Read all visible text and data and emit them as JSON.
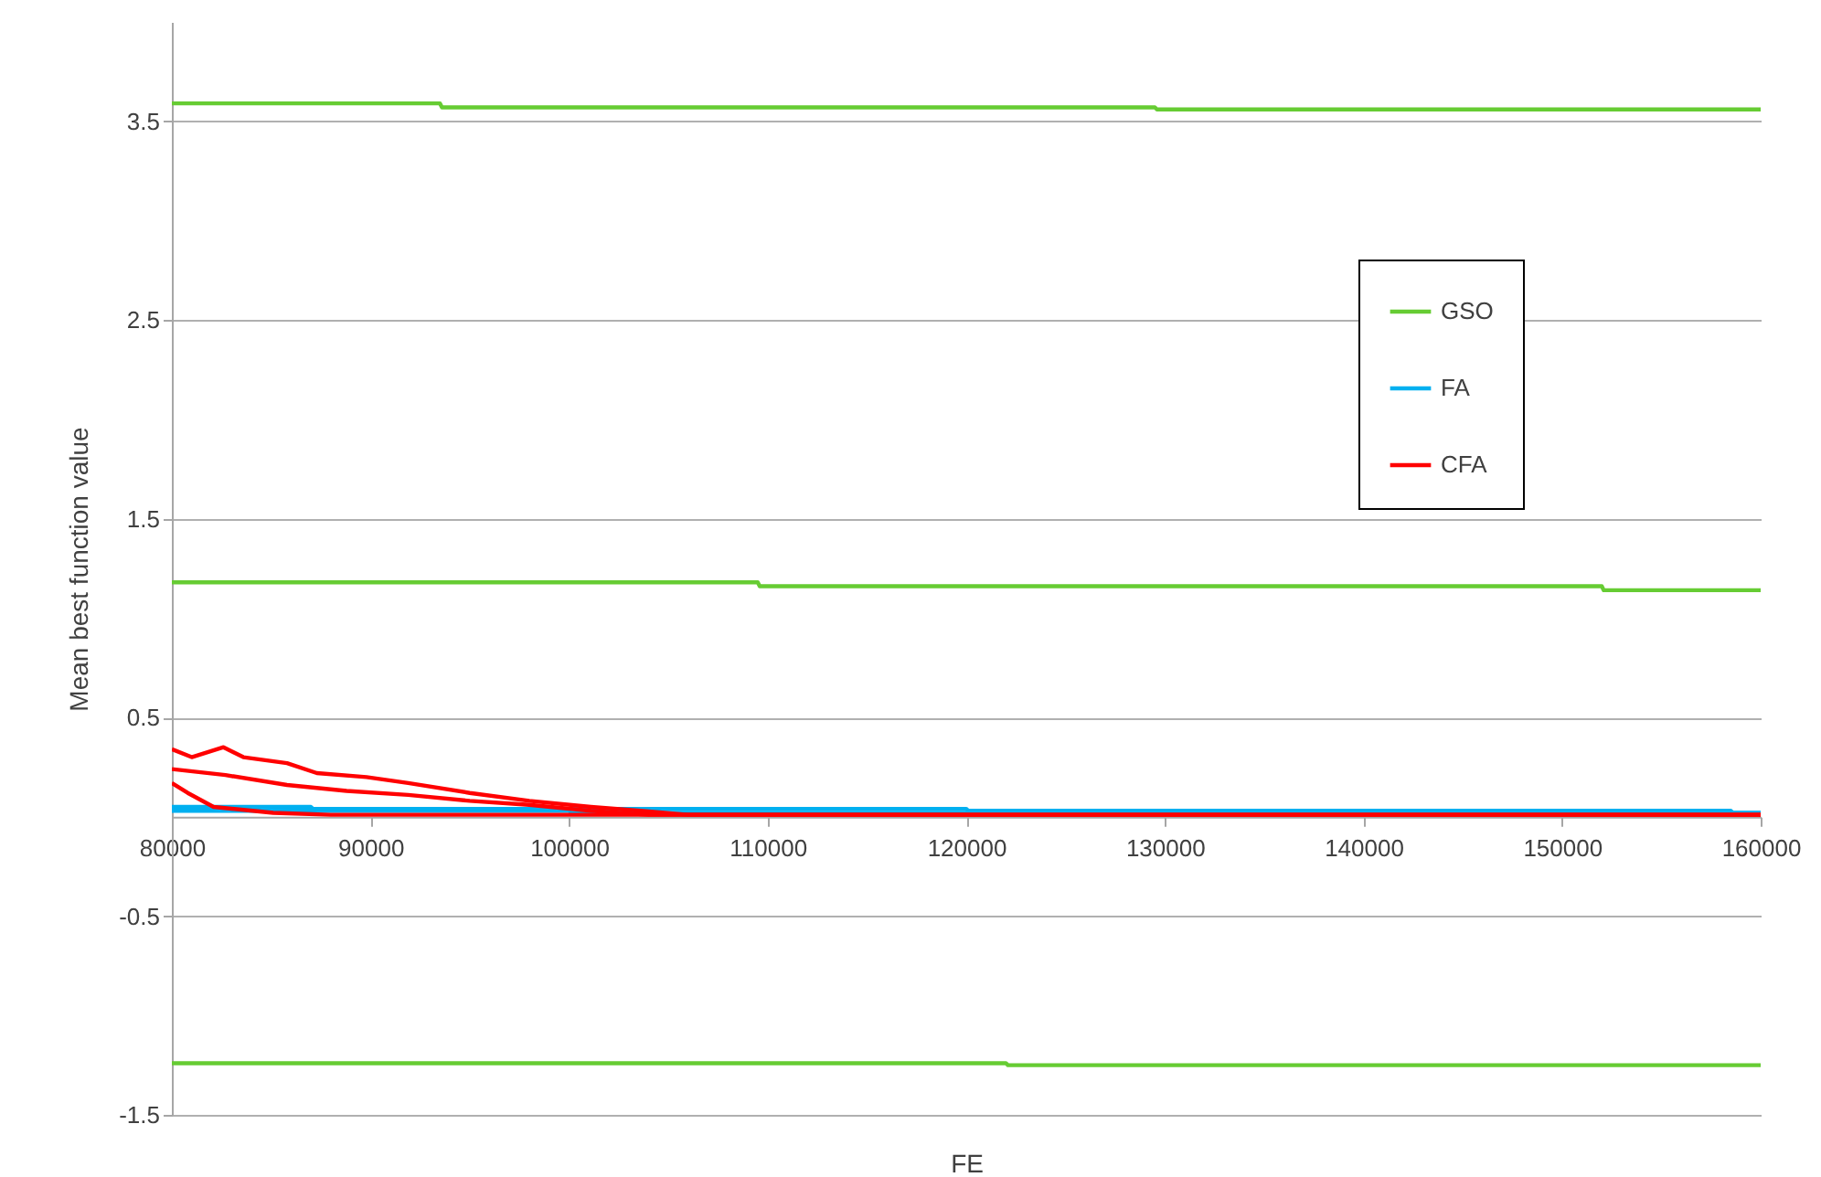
{
  "chart_data": {
    "type": "line",
    "xlabel": "FE",
    "ylabel": "Mean best function value",
    "xlim": [
      80000,
      160000
    ],
    "xticks": [
      80000,
      90000,
      100000,
      110000,
      120000,
      130000,
      140000,
      150000,
      160000
    ],
    "ylim": [
      -1.5,
      4
    ],
    "yticks": [
      -1.5,
      -0.5,
      0.5,
      1.5,
      2.5,
      3.5
    ],
    "grid": "y",
    "legend": "right",
    "series": [
      {
        "name": "GSO",
        "color": "#66cc33",
        "x": [
          80000,
          93500,
          93600,
          129500,
          129600,
          160000
        ],
        "values": [
          3.59,
          3.59,
          3.57,
          3.57,
          3.56,
          3.56
        ]
      },
      {
        "color": "#66cc33",
        "x": [
          80000,
          109500,
          109600,
          152000,
          152100,
          160000
        ],
        "values": [
          1.18,
          1.18,
          1.16,
          1.16,
          1.14,
          1.14
        ]
      },
      {
        "color": "#66cc33",
        "x": [
          80000,
          122000,
          122100,
          160000
        ],
        "values": [
          -1.24,
          -1.24,
          -1.25,
          -1.25
        ]
      },
      {
        "name": "FA",
        "color": "#00b0f0",
        "x": [
          80000,
          87000,
          87100,
          120000,
          120100,
          158500,
          158600,
          160000
        ],
        "values": [
          0.05,
          0.05,
          0.04,
          0.04,
          0.03,
          0.03,
          0.02,
          0.02
        ]
      },
      {
        "color": "#00b0f0",
        "x": [
          80000,
          100000,
          100100,
          160000
        ],
        "values": [
          0.03,
          0.03,
          0.02,
          0.02
        ]
      },
      {
        "name": "CFA",
        "color": "#ff0000",
        "x": [
          80000,
          81000,
          82600,
          83600,
          85800,
          87300,
          89800,
          91900,
          95000,
          98000,
          101100,
          103600,
          106000,
          160000
        ],
        "values": [
          0.34,
          0.3,
          0.35,
          0.3,
          0.27,
          0.22,
          0.2,
          0.17,
          0.12,
          0.08,
          0.05,
          0.03,
          0.01,
          0.01
        ]
      },
      {
        "color": "#ff0000",
        "x": [
          80000,
          82700,
          85800,
          88800,
          91900,
          95000,
          98000,
          101100,
          104000,
          160000
        ],
        "values": [
          0.24,
          0.21,
          0.16,
          0.13,
          0.11,
          0.08,
          0.06,
          0.03,
          0.01,
          0.01
        ]
      },
      {
        "color": "#ff0000",
        "x": [
          80000,
          80800,
          82100,
          85100,
          88000,
          160000
        ],
        "values": [
          0.17,
          0.12,
          0.05,
          0.02,
          0.01,
          0.01
        ]
      }
    ]
  }
}
